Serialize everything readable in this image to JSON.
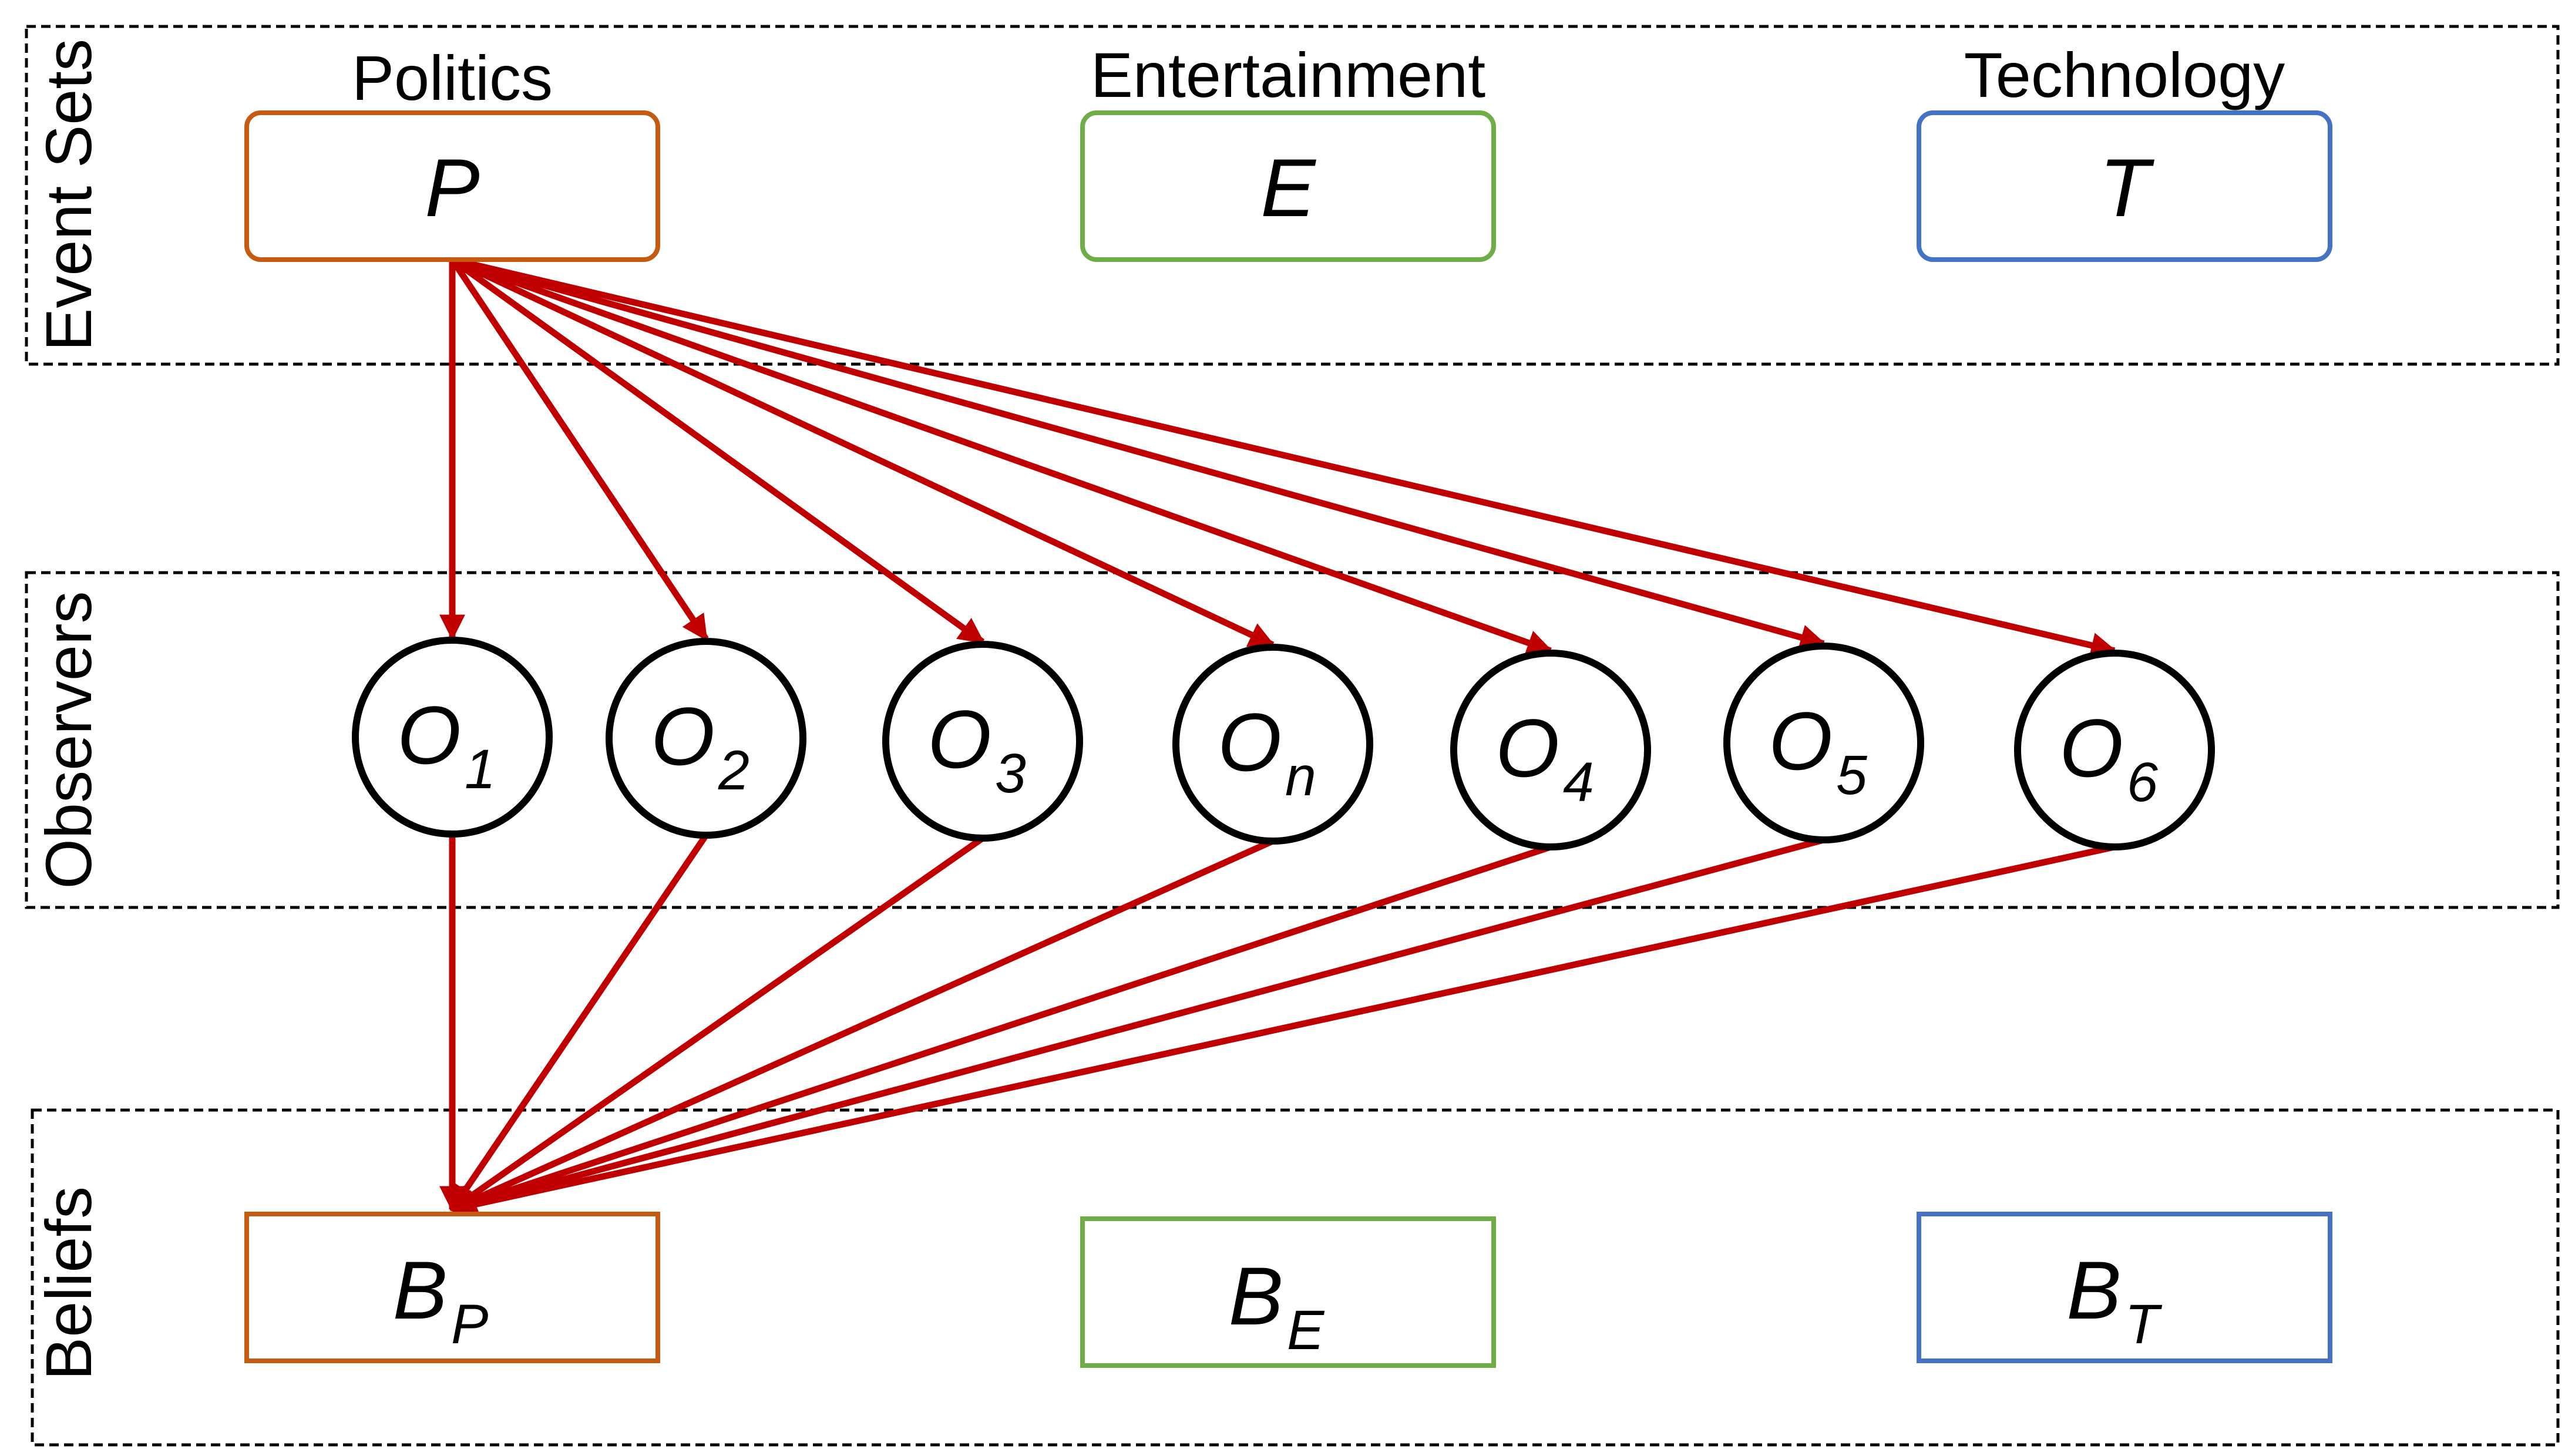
{
  "bands": {
    "events": "Event Sets",
    "observers": "Observers",
    "beliefs": "Beliefs"
  },
  "categories": [
    {
      "name": "Politics",
      "symbol": "P",
      "color": "#c55a11"
    },
    {
      "name": "Entertainment",
      "symbol": "E",
      "color": "#70ad47"
    },
    {
      "name": "Technology",
      "symbol": "T",
      "color": "#4472c4"
    }
  ],
  "beliefs": [
    {
      "base": "B",
      "sub": "P",
      "color": "#c55a11"
    },
    {
      "base": "B",
      "sub": "E",
      "color": "#70ad47"
    },
    {
      "base": "B",
      "sub": "T",
      "color": "#4472c4"
    }
  ],
  "observers": [
    {
      "base": "O",
      "sub": "1"
    },
    {
      "base": "O",
      "sub": "2"
    },
    {
      "base": "O",
      "sub": "3"
    },
    {
      "base": "O",
      "sub": "n"
    },
    {
      "base": "O",
      "sub": "4"
    },
    {
      "base": "O",
      "sub": "5"
    },
    {
      "base": "O",
      "sub": "6"
    }
  ],
  "edge_color": "#c00000"
}
